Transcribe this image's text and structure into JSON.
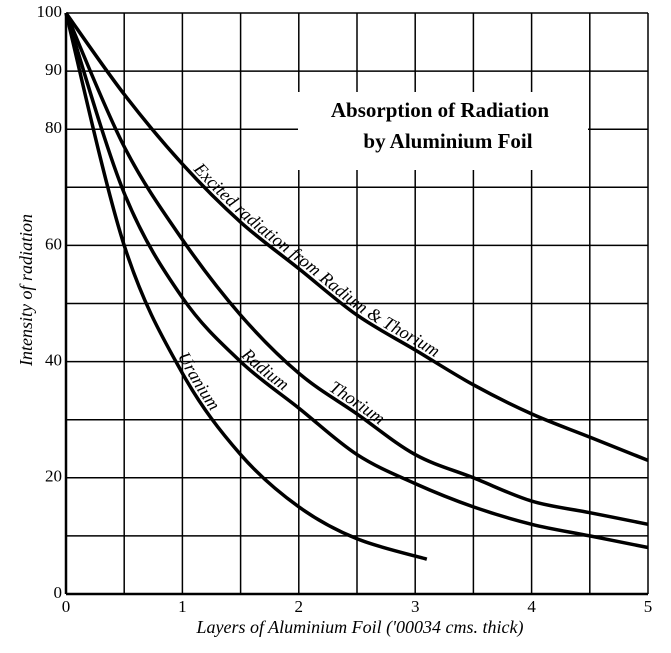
{
  "chart_data": {
    "type": "line",
    "title": [
      "Absorption of Radiation",
      "by Aluminium Foil"
    ],
    "x_label": "Layers of Aluminium Foil ('00034 cms. thick)",
    "y_label": "Intensity of radiation",
    "xlim": [
      0,
      5
    ],
    "ylim": [
      0,
      100
    ],
    "xticks": [
      0,
      1,
      2,
      3,
      4,
      5
    ],
    "yticks": [
      0,
      20,
      40,
      60,
      80,
      90,
      100
    ],
    "xgrid": [
      0,
      0.5,
      1,
      1.5,
      2,
      2.5,
      3,
      3.5,
      4,
      4.5,
      5
    ],
    "ygrid": [
      0,
      10,
      20,
      30,
      40,
      50,
      60,
      70,
      80,
      90,
      100
    ],
    "grid": true,
    "series": [
      {
        "name": "Excited radiation from Radium & Thorium",
        "color": "#000000",
        "x": [
          0,
          0.5,
          1,
          1.5,
          2,
          2.5,
          3,
          3.5,
          4,
          4.5,
          5
        ],
        "values": [
          100,
          86,
          74,
          64,
          56,
          48,
          42,
          36,
          31,
          27,
          23
        ]
      },
      {
        "name": "Thorium",
        "color": "#000000",
        "x": [
          0,
          0.5,
          1,
          1.5,
          2,
          2.5,
          3,
          3.5,
          4,
          4.5,
          5
        ],
        "values": [
          100,
          77,
          61,
          48,
          38,
          31,
          24,
          20,
          16,
          14,
          12
        ]
      },
      {
        "name": "Radium",
        "color": "#000000",
        "x": [
          0,
          0.5,
          1,
          1.5,
          2,
          2.5,
          3,
          3.5,
          4,
          4.5,
          5
        ],
        "values": [
          100,
          69,
          51,
          40,
          32,
          24,
          19,
          15,
          12,
          10,
          8
        ]
      },
      {
        "name": "Uranium",
        "color": "#000000",
        "x": [
          0,
          0.5,
          1,
          1.5,
          2,
          2.5,
          3.1
        ],
        "values": [
          100,
          60,
          38,
          24,
          15,
          9.5,
          6
        ]
      }
    ]
  }
}
